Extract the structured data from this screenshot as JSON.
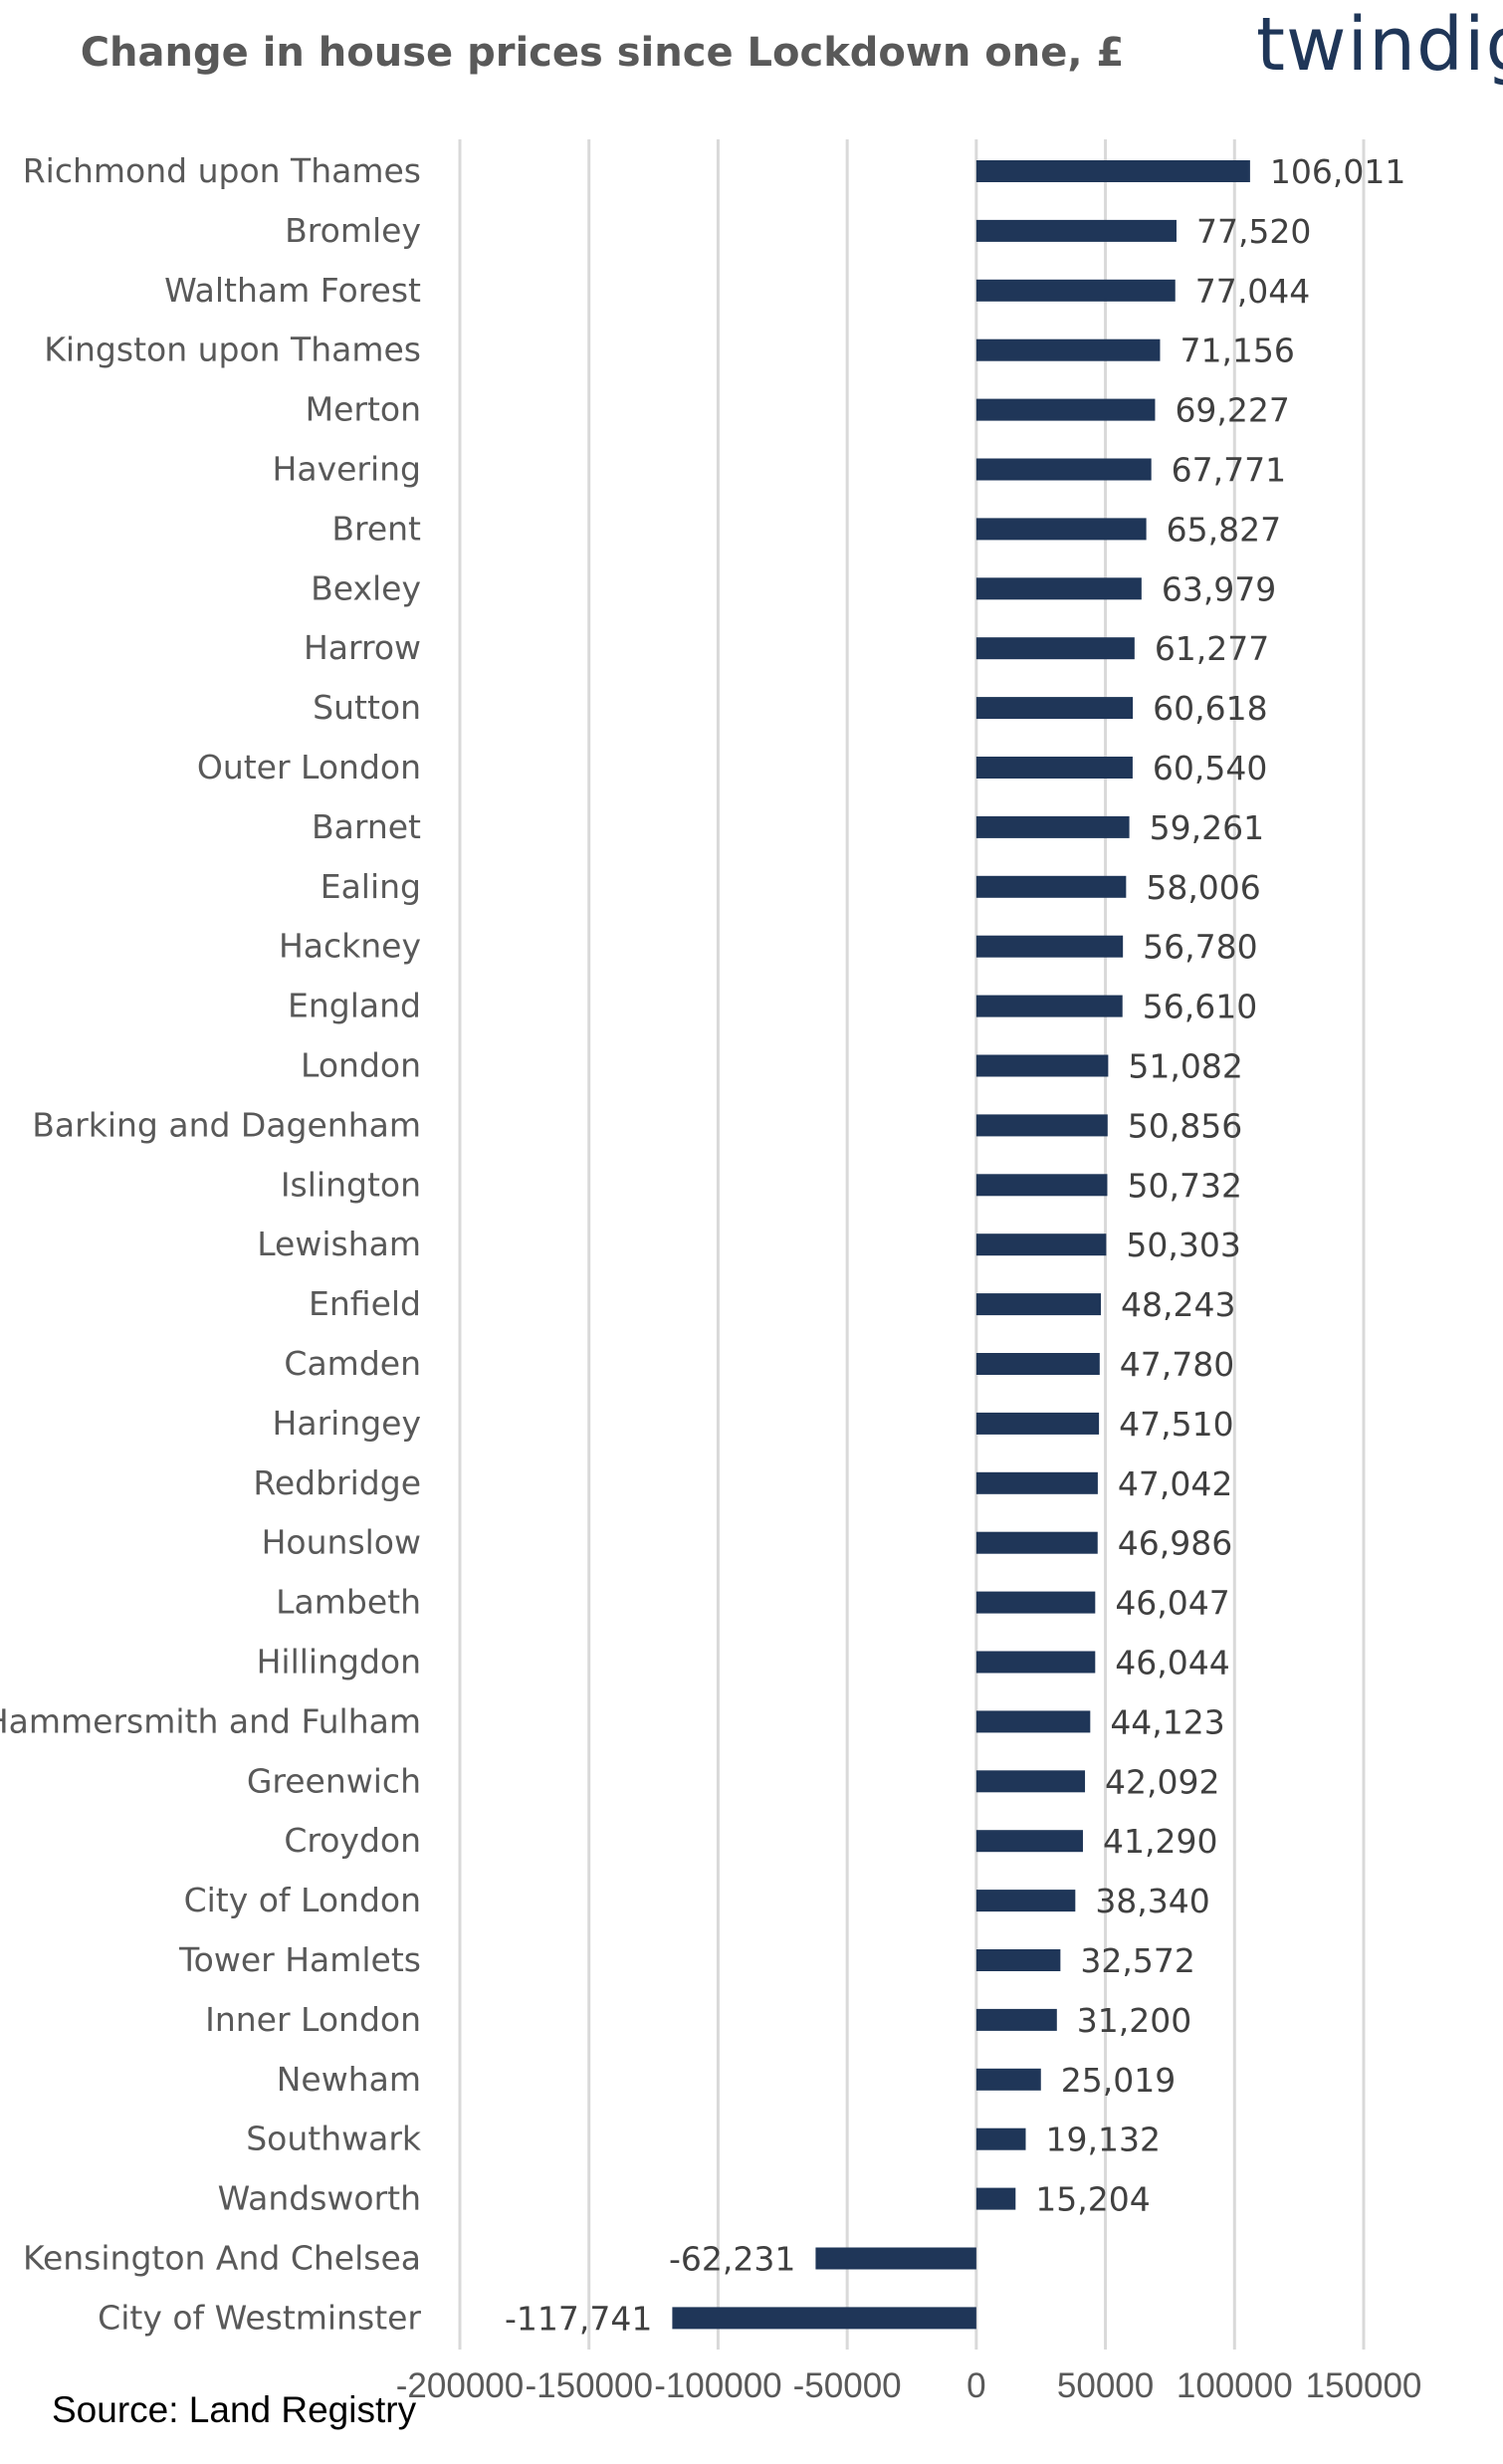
{
  "header": {
    "logo_text": "twindig"
  },
  "footer": {
    "source": "Source: Land Registry"
  },
  "colors": {
    "bar": "#1f3658",
    "grid": "#d9d9d9",
    "text": "#595959"
  },
  "chart_data": {
    "type": "bar",
    "orientation": "horizontal",
    "title": "Change in house prices since Lockdown one, £",
    "categories": [
      "Richmond upon Thames",
      "Bromley",
      "Waltham Forest",
      "Kingston upon Thames",
      "Merton",
      "Havering",
      "Brent",
      "Bexley",
      "Harrow",
      "Sutton",
      "Outer London",
      "Barnet",
      "Ealing",
      "Hackney",
      "England",
      "London",
      "Barking and Dagenham",
      "Islington",
      "Lewisham",
      "Enfield",
      "Camden",
      "Haringey",
      "Redbridge",
      "Hounslow",
      "Lambeth",
      "Hillingdon",
      "Hammersmith and Fulham",
      "Greenwich",
      "Croydon",
      "City of London",
      "Tower Hamlets",
      "Inner London",
      "Newham",
      "Southwark",
      "Wandsworth",
      "Kensington And Chelsea",
      "City of Westminster"
    ],
    "values": [
      106011,
      77520,
      77044,
      71156,
      69227,
      67771,
      65827,
      63979,
      61277,
      60618,
      60540,
      59261,
      58006,
      56780,
      56610,
      51082,
      50856,
      50732,
      50303,
      48243,
      47780,
      47510,
      47042,
      46986,
      46047,
      46044,
      44123,
      42092,
      41290,
      38340,
      32572,
      31200,
      25019,
      19132,
      15204,
      -62231,
      -117741
    ],
    "value_labels": [
      "106,011",
      "77,520",
      "77,044",
      "71,156",
      "69,227",
      "67,771",
      "65,827",
      "63,979",
      "61,277",
      "60,618",
      "60,540",
      "59,261",
      "58,006",
      "56,780",
      "56,610",
      "51,082",
      "50,856",
      "50,732",
      "50,303",
      "48,243",
      "47,780",
      "47,510",
      "47,042",
      "46,986",
      "46,047",
      "46,044",
      "44,123",
      "42,092",
      "41,290",
      "38,340",
      "32,572",
      "31,200",
      "25,019",
      "19,132",
      "15,204",
      "-62,231",
      "-117,741"
    ],
    "xlim": [
      -200000,
      150000
    ],
    "xticks": [
      -200000,
      -150000,
      -100000,
      -50000,
      0,
      50000,
      100000,
      150000
    ],
    "xtick_labels": [
      "-200000",
      "-150000",
      "-100000",
      "-50000",
      "0",
      "50000",
      "100000",
      "150000"
    ],
    "grid": true,
    "legend": "none"
  }
}
